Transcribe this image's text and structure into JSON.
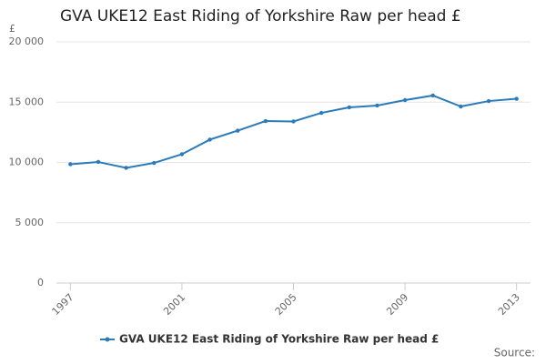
{
  "chart_data": {
    "type": "line",
    "title": "GVA UKE12 East Riding of Yorkshire Raw per head £",
    "y_label": "£",
    "x": [
      1997,
      1998,
      1999,
      2000,
      2001,
      2002,
      2003,
      2004,
      2005,
      2006,
      2007,
      2008,
      2009,
      2010,
      2011,
      2012,
      2013
    ],
    "series": [
      {
        "name": "GVA UKE12 East Riding of Yorkshire Raw per head £",
        "color": "#2b7bba",
        "values": [
          9850,
          10040,
          9550,
          9960,
          10680,
          11890,
          12640,
          13430,
          13400,
          14110,
          14570,
          14720,
          15170,
          15550,
          14640,
          15090,
          15280
        ]
      }
    ],
    "xlim": [
      1996.5,
      2013.5
    ],
    "xticks": [
      1997,
      2001,
      2005,
      2009,
      2013
    ],
    "ylim": [
      0,
      20000
    ],
    "yticks": [
      0,
      {
        "value": 5000,
        "label": "5 000"
      },
      {
        "value": 10000,
        "label": "10 000"
      },
      {
        "value": 15000,
        "label": "15 000"
      },
      {
        "value": 20000,
        "label": "20 000"
      }
    ],
    "grid": true,
    "legend": "bottom",
    "source": "Source:"
  }
}
